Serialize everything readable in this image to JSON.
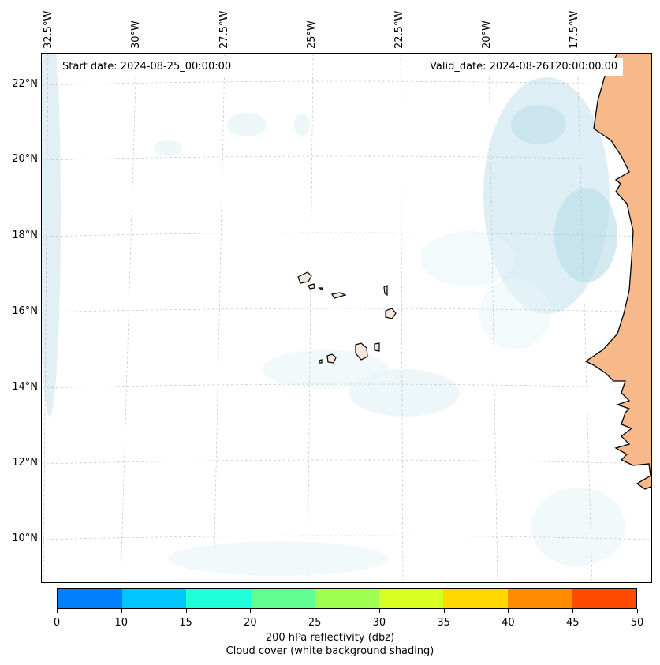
{
  "map": {
    "lon_ticks": [
      "32.5°W",
      "30°W",
      "27.5°W",
      "25°W",
      "22.5°W",
      "20°W",
      "17.5°W"
    ],
    "lat_ticks": [
      "22°N",
      "20°N",
      "18°N",
      "16°N",
      "14°N",
      "12°N",
      "10°N"
    ],
    "start_date": "Start date: 2024-08-25_00:00:00",
    "valid_date": "Valid_date: 2024-08-26T20:00:00.00",
    "land_color": "#f7b98a",
    "cloud_color": "#a8d4e4"
  },
  "colorbar": {
    "ticks": [
      "0",
      "10",
      "15",
      "20",
      "25",
      "30",
      "35",
      "40",
      "45",
      "50"
    ],
    "colors": [
      "#0080ff",
      "#00c8ff",
      "#20ffd8",
      "#60ff90",
      "#a0ff50",
      "#d8ff20",
      "#ffd800",
      "#ff8c00",
      "#ff4b00"
    ],
    "label_line1": "200 hPa reflectivity (dbz)",
    "label_line2": "Cloud cover (white background shading)"
  }
}
